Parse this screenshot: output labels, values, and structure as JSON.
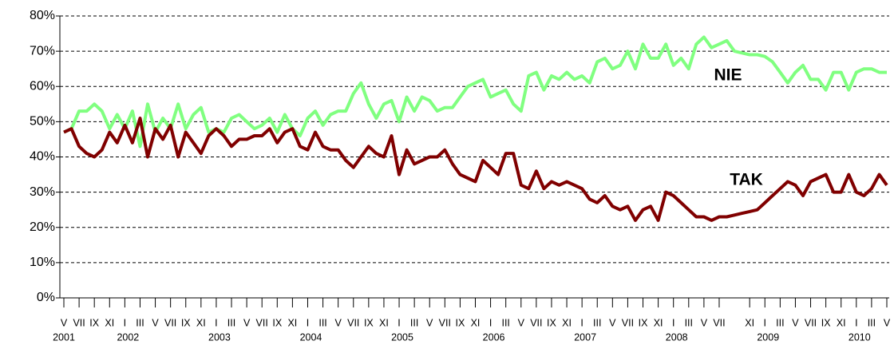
{
  "chart_data": {
    "type": "line",
    "categories": [
      "V",
      null,
      "VII",
      null,
      "IX",
      null,
      "XI",
      null,
      "I",
      null,
      "III",
      null,
      "V",
      null,
      "VII",
      null,
      "IX",
      null,
      "XI",
      null,
      "I",
      null,
      "III",
      null,
      "V",
      null,
      "VII",
      null,
      "IX",
      null,
      "XI",
      null,
      "I",
      null,
      "III",
      null,
      "V",
      null,
      "VII",
      null,
      "IX",
      null,
      "XI",
      null,
      "I",
      null,
      "III",
      null,
      "V",
      null,
      "VII",
      null,
      "IX",
      null,
      "XI",
      null,
      "I",
      null,
      "III",
      null,
      "V",
      null,
      "VII",
      null,
      "IX",
      null,
      "XI",
      null,
      "I",
      null,
      "III",
      null,
      "V",
      null,
      "VII",
      null,
      "IX",
      null,
      "XI",
      null,
      "I",
      null,
      "III",
      null,
      "V",
      null,
      "VII",
      null,
      null,
      null,
      "XI",
      null,
      "I",
      null,
      "III",
      null,
      "V",
      null,
      "VII",
      null,
      "IX",
      null,
      "XI",
      null,
      "I",
      null,
      "III",
      null,
      "V"
    ],
    "years": [
      "2001",
      null,
      null,
      null,
      null,
      null,
      null,
      null,
      "2002",
      null,
      null,
      null,
      null,
      null,
      null,
      null,
      null,
      null,
      null,
      null,
      "2003",
      null,
      null,
      null,
      null,
      null,
      null,
      null,
      null,
      null,
      null,
      null,
      "2004",
      null,
      null,
      null,
      null,
      null,
      null,
      null,
      null,
      null,
      null,
      null,
      "2005",
      null,
      null,
      null,
      null,
      null,
      null,
      null,
      null,
      null,
      null,
      null,
      "2006",
      null,
      null,
      null,
      null,
      null,
      null,
      null,
      null,
      null,
      null,
      null,
      "2007",
      null,
      null,
      null,
      null,
      null,
      null,
      null,
      null,
      null,
      null,
      null,
      "2008",
      null,
      null,
      null,
      null,
      null,
      null,
      null,
      null,
      null,
      null,
      null,
      "2009",
      null,
      null,
      null,
      null,
      null,
      null,
      null,
      null,
      null,
      null,
      null,
      "2010",
      null,
      null,
      null,
      null
    ],
    "series": [
      {
        "name": "NIE",
        "color": "#80ff80",
        "values": [
          47,
          48,
          53,
          53,
          55,
          53,
          48,
          52,
          48,
          53,
          43,
          55,
          47,
          51,
          48,
          55,
          48,
          52,
          54,
          47,
          48,
          47,
          51,
          52,
          50,
          48,
          49,
          51,
          47,
          52,
          48,
          46,
          51,
          53,
          49,
          52,
          53,
          53,
          58,
          61,
          55,
          51,
          55,
          56,
          50,
          57,
          53,
          57,
          56,
          53,
          54,
          54,
          57,
          60,
          61,
          62,
          57,
          58,
          59,
          55,
          53,
          63,
          64,
          59,
          63,
          62,
          64,
          62,
          63,
          61,
          67,
          68,
          65,
          66,
          70,
          65,
          72,
          68,
          68,
          72,
          66,
          68,
          65,
          72,
          74,
          71,
          72,
          73,
          70,
          69.5,
          69,
          69,
          68.5,
          67,
          64,
          61,
          64,
          66,
          62,
          62,
          59,
          64,
          64,
          59,
          64,
          65,
          65,
          64,
          64
        ]
      },
      {
        "name": "TAK",
        "color": "#800000",
        "values": [
          47,
          48,
          43,
          41,
          40,
          42,
          47,
          44,
          49,
          44,
          51,
          40,
          48,
          45,
          49,
          40,
          47,
          44,
          41,
          46,
          48,
          46,
          43,
          45,
          45,
          46,
          46,
          48,
          44,
          47,
          48,
          43,
          42,
          47,
          43,
          42,
          42,
          39,
          37,
          40,
          43,
          41,
          40,
          46,
          35,
          42,
          38,
          39,
          40,
          40,
          42,
          38,
          35,
          34,
          33,
          39,
          37,
          35,
          41,
          41,
          32,
          31,
          36,
          31,
          33,
          32,
          33,
          32,
          31,
          28,
          27,
          29,
          26,
          25,
          26,
          22,
          25,
          26,
          22,
          30,
          29,
          27,
          25,
          23,
          23,
          22,
          23,
          23,
          23.5,
          24,
          24.5,
          25,
          27,
          29,
          31,
          33,
          32,
          29,
          33,
          34,
          35,
          30,
          30,
          35,
          30,
          29,
          31,
          35,
          32
        ]
      }
    ],
    "ylim": [
      0,
      80
    ],
    "yticks": [
      {
        "value": 0,
        "label": "0%"
      },
      {
        "value": 10,
        "label": "10%"
      },
      {
        "value": 20,
        "label": "20%"
      },
      {
        "value": 30,
        "label": "30%"
      },
      {
        "value": 40,
        "label": "40%"
      },
      {
        "value": 50,
        "label": "50%"
      },
      {
        "value": 60,
        "label": "60%"
      },
      {
        "value": 70,
        "label": "70%"
      },
      {
        "value": 80,
        "label": "80%"
      }
    ],
    "grid": true
  }
}
